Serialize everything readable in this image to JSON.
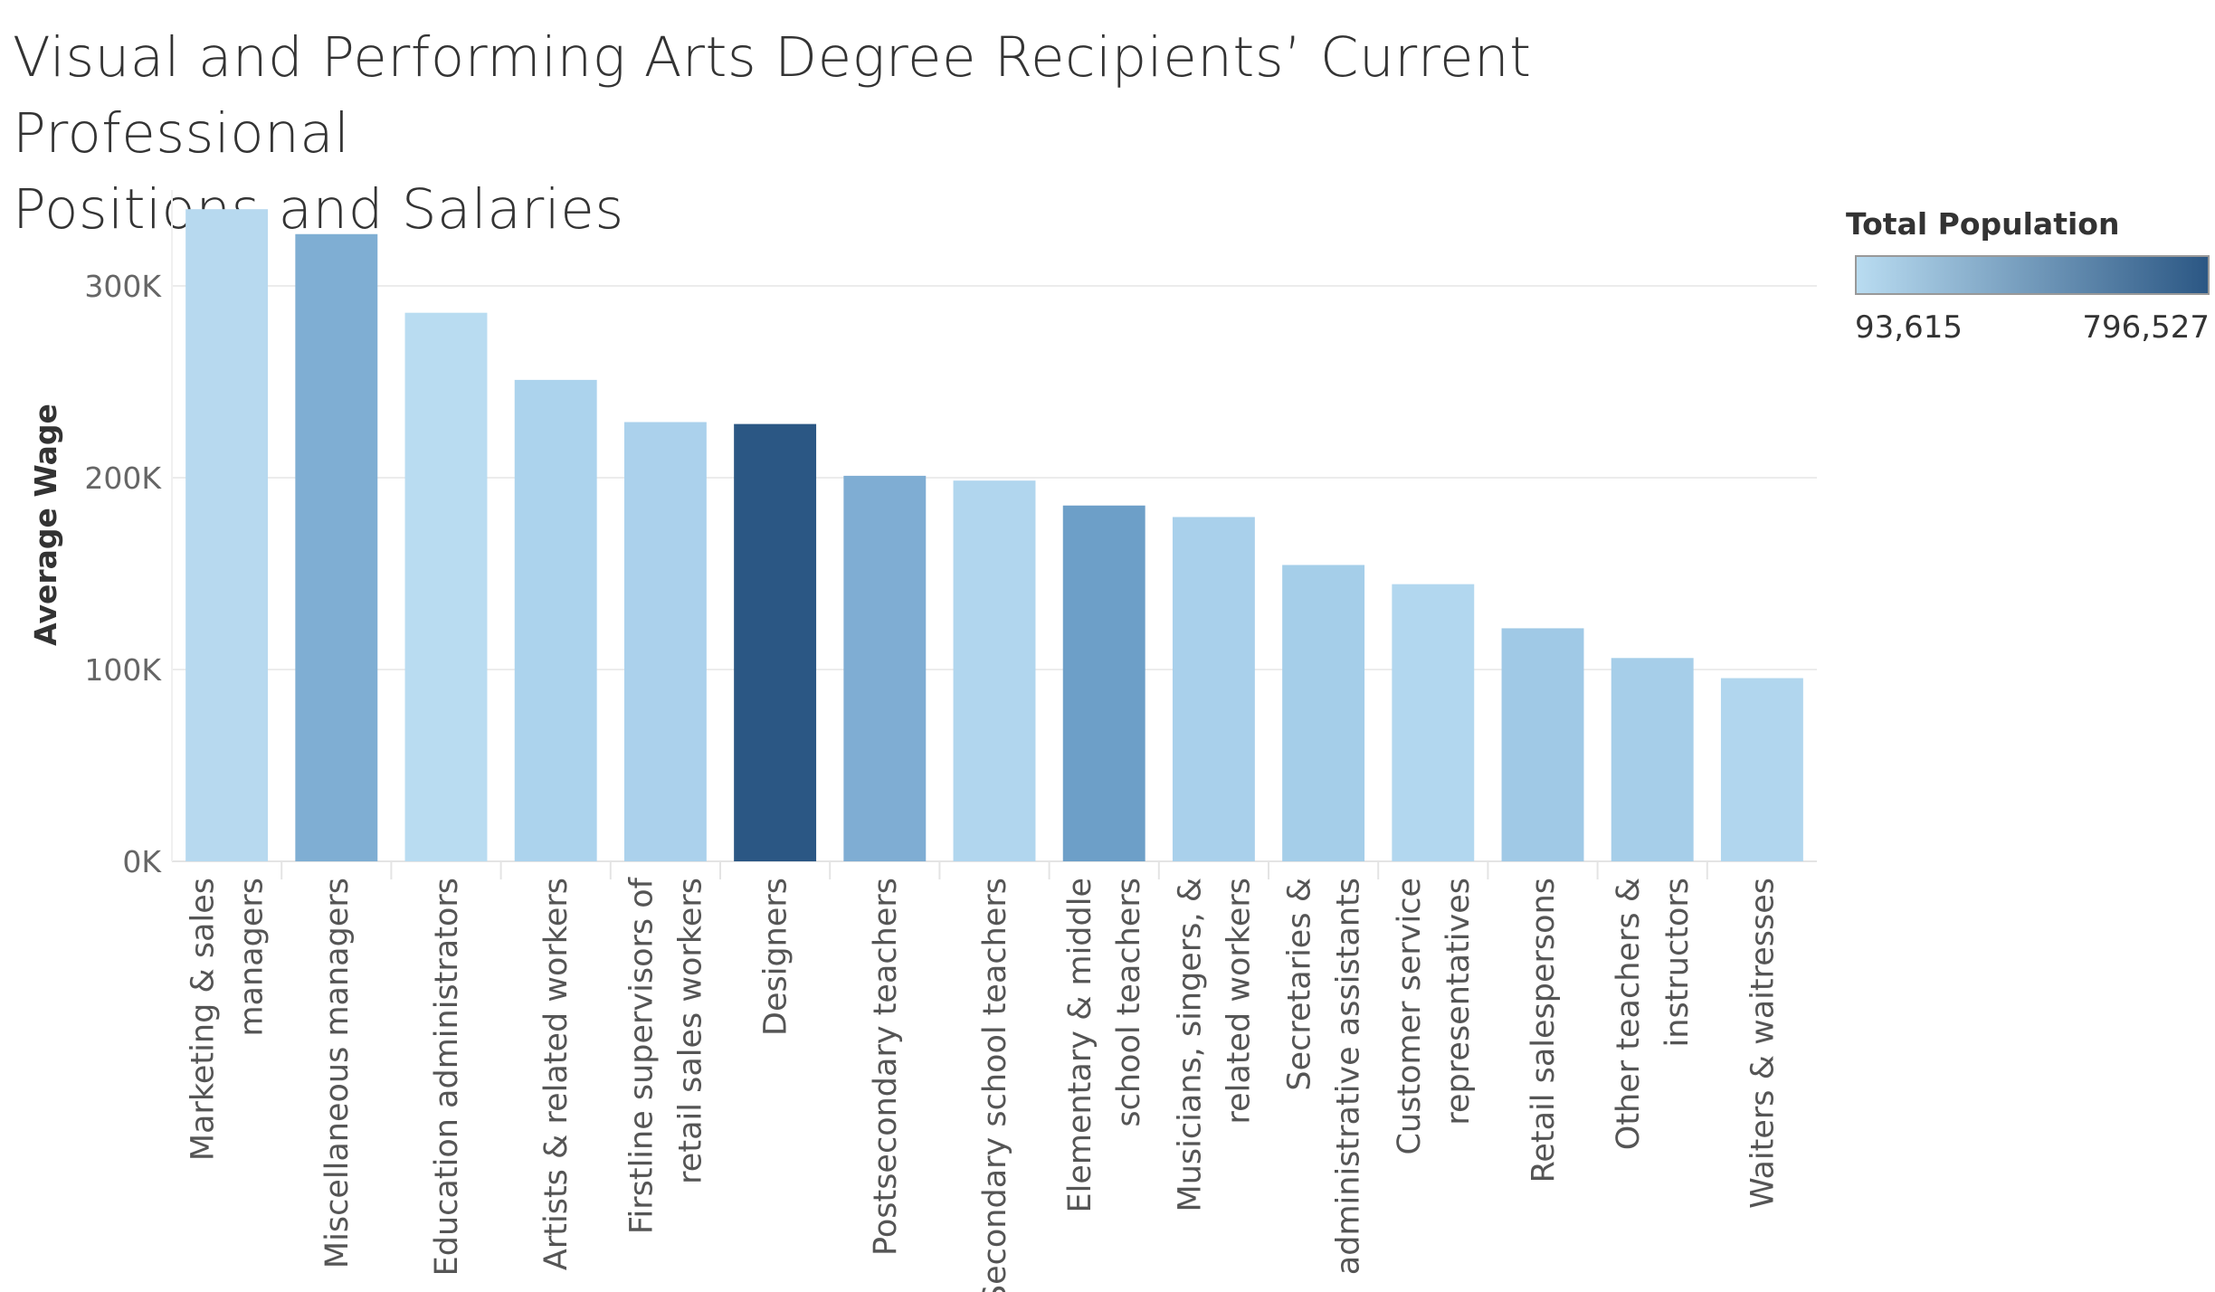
{
  "chart_data": {
    "type": "bar",
    "title": "Visual and Performing Arts Degree Recipients’ Current Professional Positions and Salaries",
    "title_lines": [
      "Visual and Performing Arts Degree Recipients’ Current Professional",
      "Positions and Salaries"
    ],
    "ylabel": "Average Wage",
    "xlabel": "",
    "ylim": [
      0,
      350000
    ],
    "yticks": [
      {
        "value": 0,
        "label": "0K"
      },
      {
        "value": 100000,
        "label": "100K"
      },
      {
        "value": 200000,
        "label": "200K"
      },
      {
        "value": 300000,
        "label": "300K"
      }
    ],
    "grid": true,
    "categories": [
      [
        "Marketing & sales",
        "managers"
      ],
      [
        "Miscellaneous managers"
      ],
      [
        "Education administrators"
      ],
      [
        "Artists & related workers"
      ],
      [
        "Firstline supervisors of",
        "retail sales workers"
      ],
      [
        "Designers"
      ],
      [
        "Postsecondary teachers"
      ],
      [
        "Secondary school teachers"
      ],
      [
        "Elementary & middle",
        "school teachers"
      ],
      [
        "Musicians, singers, &",
        "related workers"
      ],
      [
        "Secretaries &",
        "administrative assistants"
      ],
      [
        "Customer service",
        "representatives"
      ],
      [
        "Retail salespersons"
      ],
      [
        "Other teachers &",
        "instructors"
      ],
      [
        "Waiters & waitresses"
      ]
    ],
    "values": [
      340000,
      327000,
      286000,
      251000,
      229000,
      228000,
      201000,
      198500,
      185500,
      179500,
      154500,
      144500,
      121500,
      106000,
      95500
    ],
    "colors": [
      "#b7d9ef",
      "#7faed3",
      "#b9dcf1",
      "#acd3ed",
      "#abd1ec",
      "#2b5784",
      "#7fadd3",
      "#b1d6ee",
      "#6d9fc8",
      "#a9d0eb",
      "#a5cee9",
      "#b2d7ef",
      "#a0c9e6",
      "#a6cee9",
      "#b1d6ee"
    ],
    "legend": {
      "title": "Total Population",
      "min_label": "93,615",
      "max_label": "796,527",
      "min_color": "#b9dcf1",
      "max_color": "#2b5784",
      "placement": "top-right"
    }
  }
}
